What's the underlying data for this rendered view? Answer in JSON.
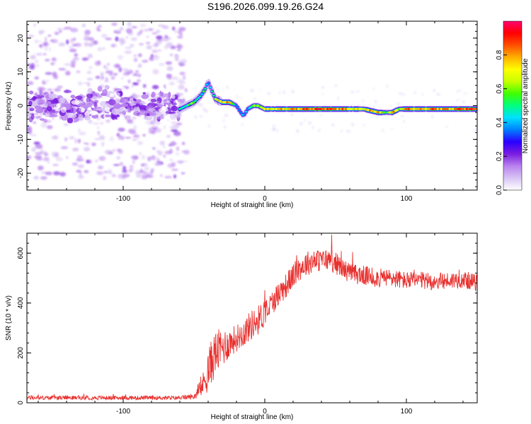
{
  "title": "S196.2026.099.19.26.G24",
  "chart_data": [
    {
      "type": "heatmap",
      "title": "S196.2026.099.19.26.G24",
      "xlabel": "Height of straight line (km)",
      "ylabel": "Frequency (Hz)",
      "xlim": [
        -168,
        150
      ],
      "ylim": [
        -25,
        25
      ],
      "xticks": [
        -100,
        0,
        100
      ],
      "yticks": [
        -20,
        -10,
        0,
        10,
        20
      ],
      "colorbar": {
        "label": "Normalized spectral amplitude",
        "range": [
          0,
          1
        ],
        "ticks": [
          "0.0",
          "0.2",
          "0.4",
          "0.6",
          "0.8"
        ],
        "colors": [
          "#ffffff",
          "#d8c4f4",
          "#b982ef",
          "#7a1de0",
          "#2a00ff",
          "#0080ff",
          "#00e0ff",
          "#00ff80",
          "#40ff00",
          "#c8ff00",
          "#ffff00",
          "#ffb000",
          "#ff5000",
          "#ff0000",
          "#ff0070"
        ]
      },
      "ridge": {
        "x": [
          -60,
          -55,
          -50,
          -45,
          -42,
          -40,
          -38,
          -35,
          -30,
          -25,
          -20,
          -17,
          -15,
          -12,
          -8,
          -5,
          0,
          10,
          20,
          30,
          40,
          50,
          60,
          70,
          80,
          85,
          90,
          95,
          100,
          110,
          120,
          130,
          140,
          150
        ],
        "freq": [
          -1,
          0,
          1,
          3,
          5,
          7,
          5,
          2,
          1,
          1,
          0,
          -2,
          -3,
          -1,
          0,
          0,
          -1,
          -1,
          -1,
          -1,
          -1,
          -1,
          -1,
          -1,
          -2,
          -2,
          -2,
          -1,
          -1,
          -1,
          -1,
          -1,
          -1,
          -1
        ],
        "amplitude": [
          0.45,
          0.5,
          0.55,
          0.5,
          0.45,
          0.35,
          0.5,
          0.55,
          0.8,
          0.75,
          0.4,
          0.35,
          0.35,
          0.45,
          0.55,
          0.6,
          0.7,
          0.75,
          0.8,
          0.85,
          0.9,
          0.85,
          0.75,
          0.7,
          0.85,
          0.5,
          0.8,
          0.6,
          0.85,
          0.75,
          0.85,
          0.8,
          0.9,
          0.85
        ]
      },
      "noise_region": {
        "x_range": [
          -168,
          -60
        ],
        "freq_spread": [
          -20,
          20
        ],
        "core_spread": [
          -5,
          5
        ],
        "amplitude_range": [
          0.0,
          0.25
        ]
      }
    },
    {
      "type": "line",
      "xlabel": "Height of straight line (km)",
      "ylabel": "SNR (10 * v/v)",
      "xlim": [
        -168,
        150
      ],
      "ylim": [
        0,
        680
      ],
      "xticks": [
        -100,
        0,
        100
      ],
      "yticks": [
        0,
        200,
        400,
        600
      ],
      "color": "#e8312f",
      "series": [
        {
          "name": "SNR",
          "x": [
            -168,
            -150,
            -120,
            -90,
            -60,
            -50,
            -45,
            -40,
            -35,
            -30,
            -25,
            -20,
            -15,
            -10,
            -5,
            0,
            5,
            10,
            15,
            20,
            25,
            30,
            35,
            40,
            45,
            50,
            55,
            60,
            70,
            80,
            90,
            100,
            110,
            120,
            130,
            140,
            150
          ],
          "mean": [
            20,
            20,
            20,
            20,
            20,
            25,
            55,
            130,
            200,
            220,
            240,
            260,
            280,
            310,
            330,
            360,
            400,
            440,
            470,
            510,
            540,
            560,
            570,
            570,
            575,
            560,
            540,
            520,
            510,
            500,
            500,
            490,
            490,
            485,
            490,
            495,
            480
          ],
          "noise": [
            8,
            8,
            8,
            8,
            8,
            12,
            30,
            90,
            90,
            80,
            60,
            55,
            55,
            60,
            60,
            55,
            50,
            50,
            50,
            50,
            50,
            50,
            45,
            45,
            45,
            45,
            40,
            40,
            40,
            38,
            38,
            36,
            36,
            35,
            35,
            35,
            35
          ]
        }
      ]
    }
  ]
}
